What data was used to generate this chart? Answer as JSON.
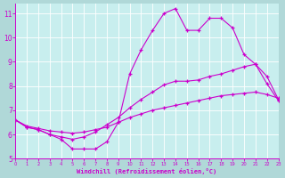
{
  "xlabel": "Windchill (Refroidissement éolien,°C)",
  "fig_bg_color": "#9999bb",
  "plot_bg_color": "#cceeff",
  "grid_color": "#aadddd",
  "line_color": "#cc00cc",
  "xlabel_bg": "#8888aa",
  "xlim": [
    0,
    23
  ],
  "ylim": [
    5,
    11.4
  ],
  "xticks": [
    0,
    1,
    2,
    3,
    4,
    5,
    6,
    7,
    8,
    9,
    10,
    11,
    12,
    13,
    14,
    15,
    16,
    17,
    18,
    19,
    20,
    21,
    22,
    23
  ],
  "yticks": [
    5,
    6,
    7,
    8,
    9,
    10,
    11
  ],
  "c1_x": [
    0,
    1,
    2,
    3,
    4,
    5,
    6,
    7,
    8,
    9,
    10,
    11,
    12,
    13,
    14,
    15,
    16,
    17,
    18,
    19,
    20,
    21,
    22,
    23
  ],
  "c1_y": [
    6.6,
    6.3,
    6.2,
    6.0,
    5.8,
    5.4,
    5.4,
    5.4,
    5.7,
    6.5,
    8.5,
    9.5,
    10.3,
    11.0,
    11.2,
    10.3,
    10.3,
    10.8,
    10.8,
    10.4,
    9.3,
    8.9,
    8.1,
    7.4
  ],
  "c2_x": [
    0,
    1,
    2,
    3,
    4,
    5,
    6,
    7,
    8,
    9,
    10,
    11,
    12,
    13,
    14,
    15,
    16,
    17,
    18,
    19,
    20,
    21,
    22,
    23
  ],
  "c2_y": [
    6.6,
    6.35,
    6.25,
    6.15,
    6.1,
    6.05,
    6.1,
    6.2,
    6.3,
    6.5,
    6.7,
    6.85,
    7.0,
    7.1,
    7.2,
    7.3,
    7.4,
    7.5,
    7.6,
    7.65,
    7.7,
    7.75,
    7.65,
    7.5
  ],
  "c3_x": [
    0,
    1,
    2,
    3,
    4,
    5,
    6,
    7,
    8,
    9,
    10,
    11,
    12,
    13,
    14,
    15,
    16,
    17,
    18,
    19,
    20,
    21,
    22,
    23
  ],
  "c3_y": [
    6.6,
    6.3,
    6.2,
    6.0,
    5.9,
    5.8,
    5.9,
    6.1,
    6.4,
    6.7,
    7.1,
    7.45,
    7.75,
    8.05,
    8.2,
    8.2,
    8.25,
    8.4,
    8.5,
    8.65,
    8.8,
    8.9,
    8.4,
    7.45
  ]
}
